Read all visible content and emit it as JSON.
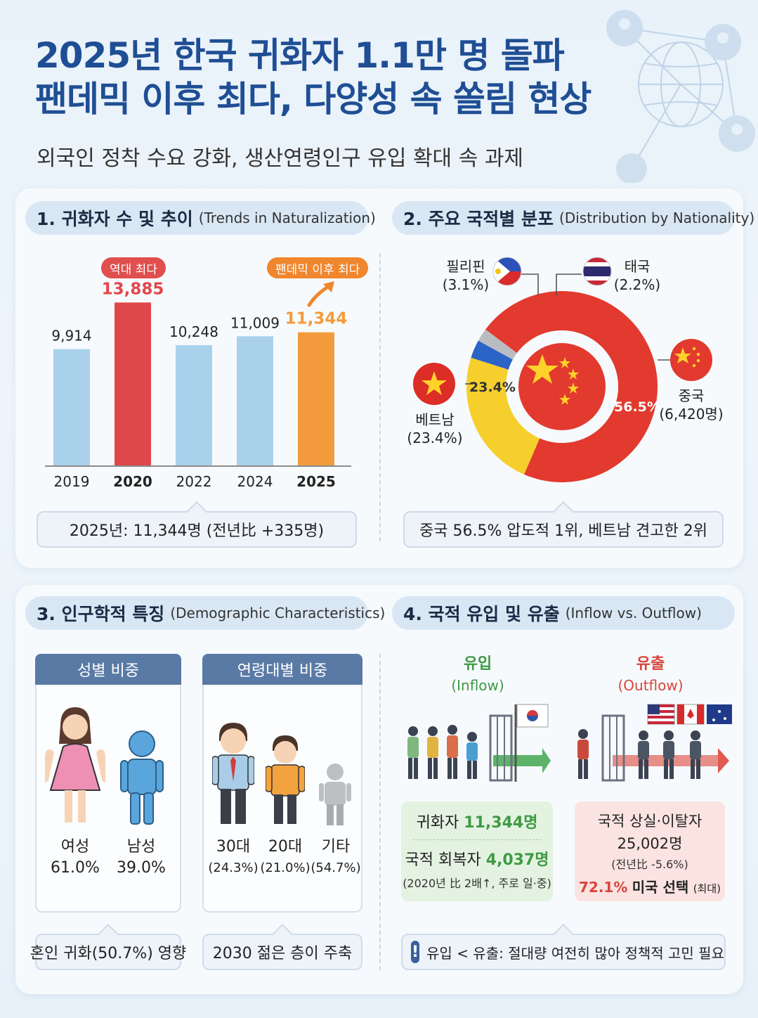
{
  "header": {
    "title_line1": "2025년 한국 귀화자 1.1만 명 돌파",
    "title_line2": "팬데믹 이후 최다, 다양성 속 쏠림 현상",
    "subtitle": "외국인 정착 수요 강화, 생산연령인구 유입 확대 속 과제"
  },
  "section1": {
    "title": "1. 귀화자 수 및 추이",
    "title_en": "(Trends in Naturalization)",
    "badge_2020": "역대 최다",
    "badge_2025": "팬데믹 이후 최다",
    "callout": "2025년: 11,344명 (전년比 +335명)"
  },
  "section2": {
    "title": "2. 주요 국적별 분포",
    "title_en": "(Distribution by Nationality)",
    "philippines": {
      "name": "필리핀",
      "pct": "(3.1%)"
    },
    "thailand": {
      "name": "태국",
      "pct": "(2.2%)"
    },
    "vietnam": {
      "name": "베트남",
      "pct": "(23.4%)",
      "inner": "23.4%"
    },
    "china": {
      "name": "중국",
      "count": "(6,420명)",
      "inner": "56.5%"
    },
    "callout": "중국 56.5% 압도적 1위, 베트남 견고한 2위"
  },
  "section3": {
    "title": "3. 인구학적 특징",
    "title_en": "(Demographic Characteristics)",
    "gender": {
      "header": "성별 비중",
      "female": {
        "label": "여성",
        "value": "61.0%"
      },
      "male": {
        "label": "남성",
        "value": "39.0%"
      },
      "callout": "혼인 귀화(50.7%) 영향"
    },
    "age": {
      "header": "연령대별 비중",
      "a30": {
        "label": "30대",
        "value": "(24.3%)"
      },
      "a20": {
        "label": "20대",
        "value": "(21.0%)"
      },
      "etc": {
        "label": "기타",
        "value": "(54.7%)"
      },
      "callout": "2030 젊은 층이 주축"
    }
  },
  "section4": {
    "title": "4. 국적 유입 및 유출",
    "title_en": "(Inflow vs. Outflow)",
    "inflow": {
      "title": "유입",
      "title_en": "(Inflow)",
      "line1_label": "귀화자",
      "line1_value": "11,344명",
      "line2_label": "국적 회복자",
      "line2_value": "4,037명",
      "line3": "(2020년 比 2배↑, 주로 일·중)"
    },
    "outflow": {
      "title": "유출",
      "title_en": "(Outflow)",
      "line1": "국적 상실·이탈자",
      "line2": "25,002명",
      "line3": "(전년比 -5.6%)",
      "line4_value": "72.1%",
      "line4_label": "미국 선택",
      "line4_note": "(최대)"
    },
    "callout": "유입 < 유출: 절대량 여전히 많아 정책적 고민 필요"
  },
  "colors": {
    "title_blue": "#1f4e94",
    "bar_blue": "#a9d1ec",
    "bar_red": "#e0474a",
    "bar_orange": "#f39b3c",
    "china_red": "#e23a2e",
    "vietnam_yellow": "#f6cf2c",
    "philippines_blue": "#2b63c6",
    "thailand_gray": "#b9bcc1",
    "inflow_green": "#3f9a45",
    "outflow_red": "#d8453c"
  },
  "chart_data": [
    {
      "type": "bar",
      "categories": [
        "2019",
        "2020",
        "2022",
        "2024",
        "2025"
      ],
      "values": [
        9914,
        13885,
        10248,
        11009,
        11344
      ],
      "value_labels": [
        "9,914",
        "13,885",
        "10,248",
        "11,009",
        "11,344"
      ],
      "highlight": [
        "none",
        "red",
        "none",
        "none",
        "orange"
      ],
      "ylim": [
        0,
        14500
      ]
    },
    {
      "type": "pie",
      "donut": true,
      "categories": [
        "중국",
        "베트남",
        "필리핀",
        "태국"
      ],
      "values": [
        56.5,
        23.4,
        3.1,
        2.2
      ]
    }
  ]
}
